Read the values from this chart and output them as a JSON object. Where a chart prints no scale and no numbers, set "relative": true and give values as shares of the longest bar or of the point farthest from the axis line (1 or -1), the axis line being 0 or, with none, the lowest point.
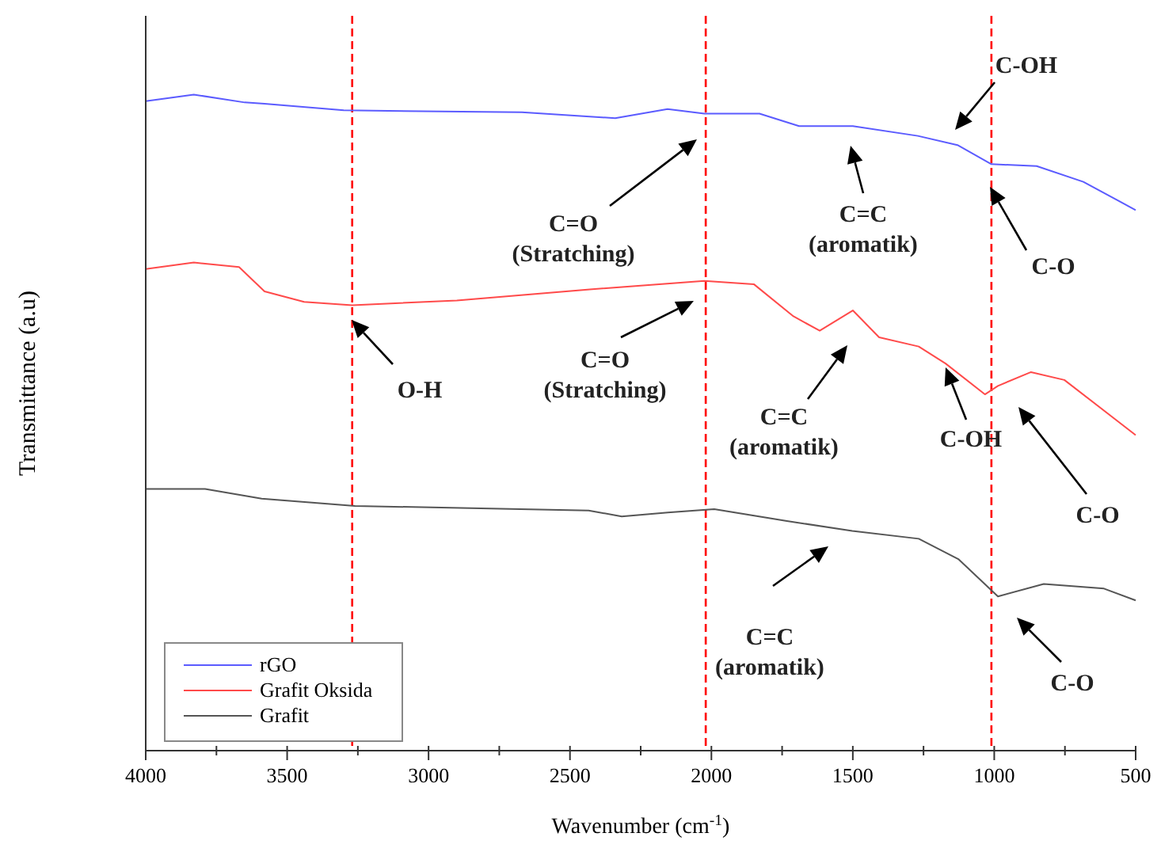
{
  "chart_data": {
    "type": "line",
    "relative": true,
    "xlabel": "Wavenumber (cm$^{-1}$)",
    "ylabel": "Transmittance (a.u)",
    "xlim": [
      4000,
      500
    ],
    "xticks": [
      4000,
      {
        "value": 3750,
        "label": null
      },
      3500,
      {
        "value": 3250,
        "label": null
      },
      3000,
      {
        "value": 2750,
        "label": null
      },
      2500,
      {
        "value": 2250,
        "label": null
      },
      2000,
      {
        "value": 1750,
        "label": null
      },
      1500,
      {
        "value": 1250,
        "label": null
      },
      1000,
      {
        "value": 750,
        "label": null
      },
      500
    ],
    "tick_labels": "x",
    "grid": false,
    "legend": "bottom left",
    "line_style": "solid",
    "series": [
      {
        "name": "rGO",
        "color": "#5b5bff",
        "x": [
          4000,
          3830,
          3650,
          3580,
          3300,
          2670,
          2340,
          2155,
          2025,
          1830,
          1690,
          1500,
          1270,
          1130,
          1010,
          850,
          685,
          500
        ],
        "values": [
          0.99,
          1.0,
          0.988,
          0.986,
          0.976,
          0.973,
          0.964,
          0.978,
          0.971,
          0.971,
          0.952,
          0.952,
          0.937,
          0.923,
          0.894,
          0.891,
          0.867,
          0.824
        ]
      },
      {
        "name": "Grafit Oksida",
        "color": "#ff4a4a",
        "x": [
          4000,
          3830,
          3670,
          3580,
          3440,
          3270,
          2900,
          2430,
          2025,
          1850,
          1710,
          1617,
          1500,
          1407,
          1267,
          1172,
          1033,
          987,
          870,
          752,
          500
        ],
        "values": [
          0.734,
          0.744,
          0.737,
          0.7,
          0.684,
          0.679,
          0.686,
          0.703,
          0.716,
          0.711,
          0.662,
          0.64,
          0.671,
          0.63,
          0.616,
          0.59,
          0.543,
          0.556,
          0.577,
          0.565,
          0.481
        ]
      },
      {
        "name": "Grafit",
        "color": "#555555",
        "x": [
          4000,
          3790,
          3590,
          3260,
          2434,
          2317,
          2154,
          1990,
          1733,
          1502,
          1267,
          1127,
          987,
          825,
          612,
          500
        ],
        "values": [
          0.399,
          0.399,
          0.384,
          0.373,
          0.366,
          0.357,
          0.363,
          0.368,
          0.35,
          0.335,
          0.323,
          0.292,
          0.235,
          0.254,
          0.247,
          0.229
        ]
      }
    ],
    "ref_lines": [
      {
        "axis": "x",
        "value": 3270,
        "color": "#ff0000",
        "line_style": "dashed"
      },
      {
        "axis": "x",
        "value": 2020,
        "color": "#ff0000",
        "line_style": "dashed"
      },
      {
        "axis": "x",
        "value": 1010,
        "color": "#ff0000",
        "line_style": "dashed"
      }
    ],
    "annotations": [
      "C-OH",
      "C=O\n(Stratching)",
      "C=C\n(aromatik)",
      "C-O",
      "O-H",
      "C=O\n(Stratching)",
      "C=C\n(aromatik)",
      "C-OH",
      "C-O",
      "C=C\n(aromatik)",
      "C-O"
    ]
  }
}
